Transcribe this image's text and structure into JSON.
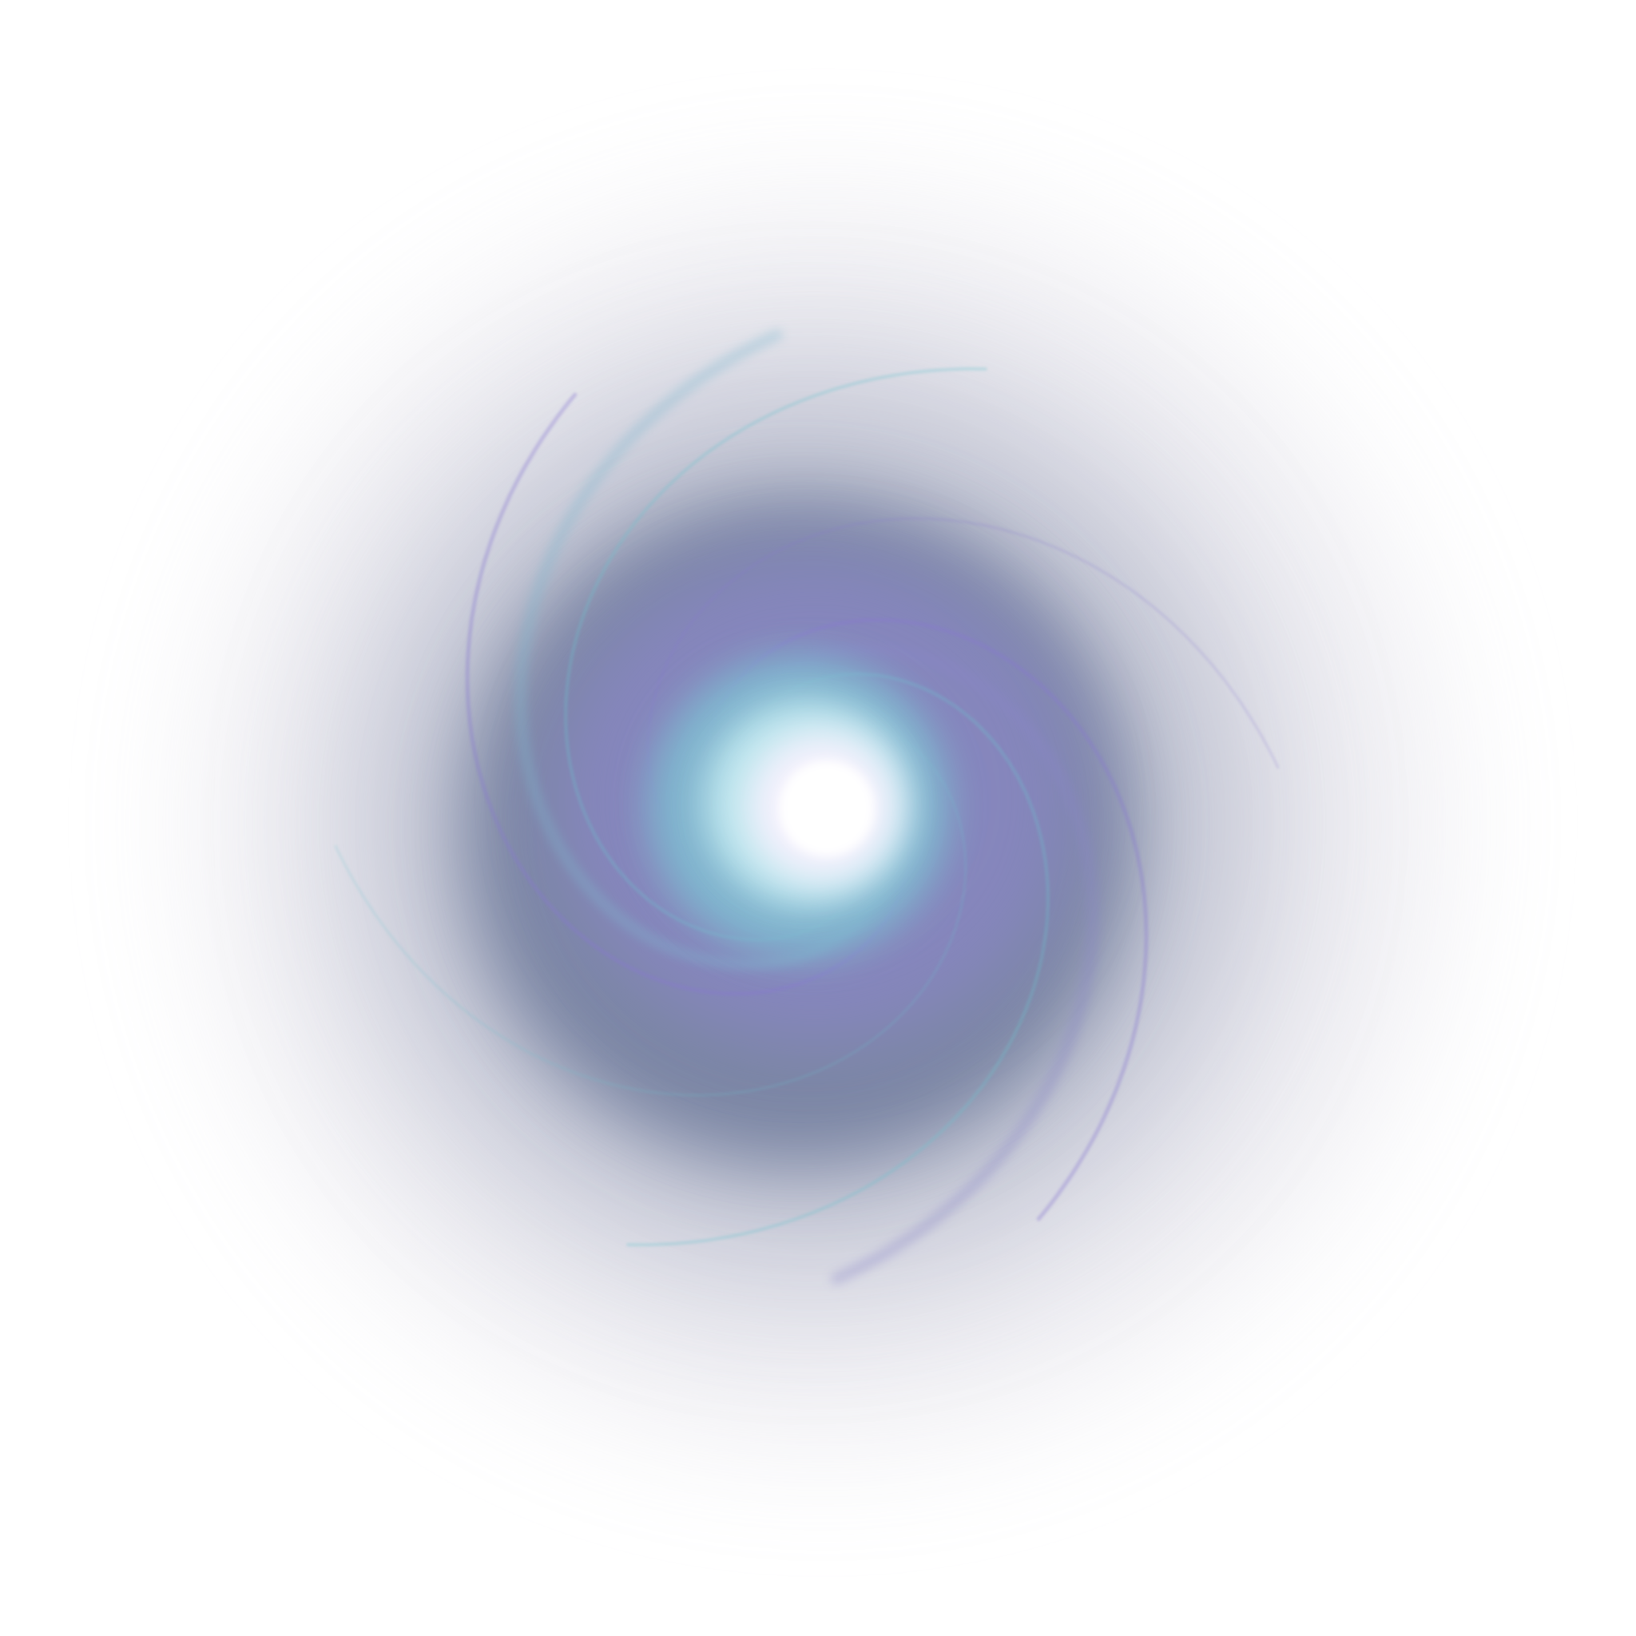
{
  "image": {
    "subject": "swirl",
    "colors": {
      "background": "#ffffff",
      "core": "#f4f1fd",
      "inner_glow": "#bfe8ef",
      "cyan_ring": "#7fb8cf",
      "violet_ring": "#8a86c8",
      "mid_body": "#6f7b9c",
      "outer_haze": "#c9c7d6",
      "violet_arm": "#8878d0",
      "cyan_arm": "#6cc4cf"
    }
  }
}
